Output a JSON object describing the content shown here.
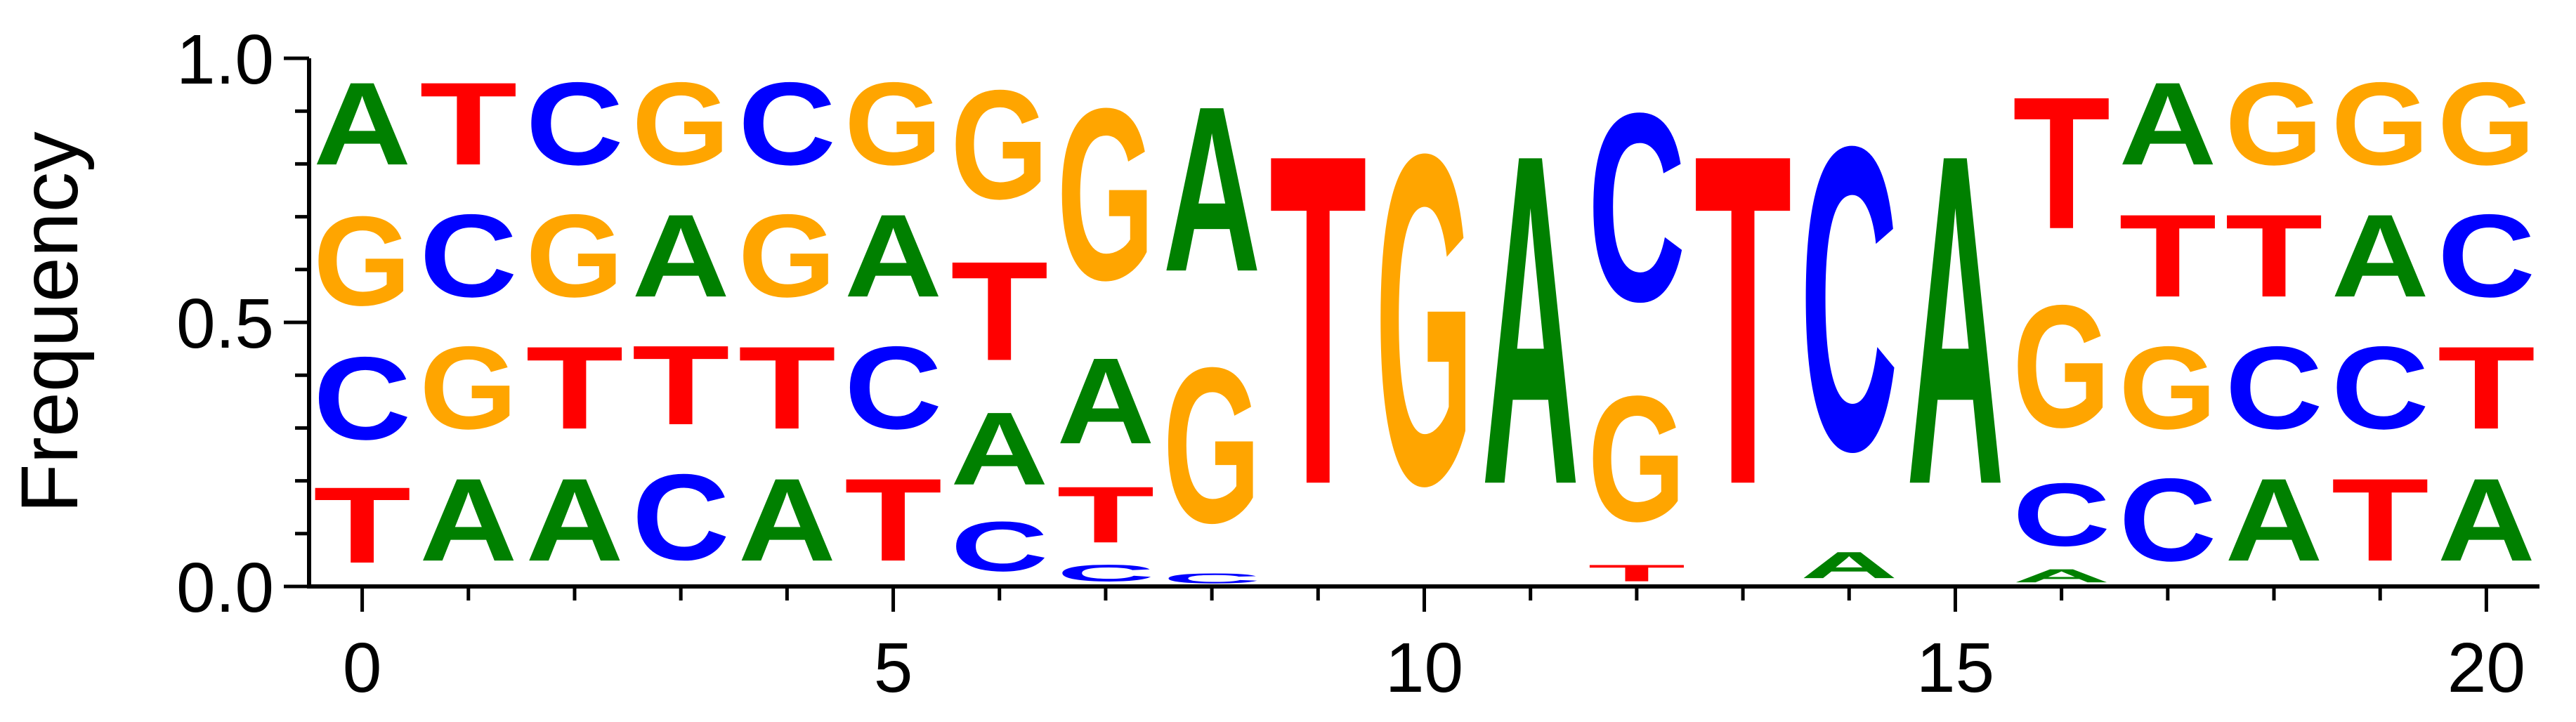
{
  "chart_data": {
    "type": "sequence-logo",
    "title": "",
    "xlabel": "",
    "ylabel": "Frequency",
    "xlim": [
      -0.5,
      20.5
    ],
    "ylim": [
      0.0,
      1.0
    ],
    "x_ticks": [
      0,
      5,
      10,
      15,
      20
    ],
    "x_tick_labels": [
      "0",
      "5",
      "10",
      "15",
      "20"
    ],
    "y_ticks": [
      0.0,
      0.5,
      1.0
    ],
    "y_tick_labels": [
      "0.0",
      "0.5",
      "1.0"
    ],
    "grid": false,
    "colors": {
      "A": "#008000",
      "C": "#0000ff",
      "G": "#ffa500",
      "T": "#ff0000"
    },
    "positions": [
      {
        "pos": 0,
        "stack": [
          [
            "T",
            0.23
          ],
          [
            "C",
            0.25
          ],
          [
            "G",
            0.27
          ],
          [
            "A",
            0.25
          ]
        ]
      },
      {
        "pos": 1,
        "stack": [
          [
            "A",
            0.25
          ],
          [
            "G",
            0.25
          ],
          [
            "C",
            0.25
          ],
          [
            "T",
            0.25
          ]
        ]
      },
      {
        "pos": 2,
        "stack": [
          [
            "A",
            0.25
          ],
          [
            "T",
            0.25
          ],
          [
            "G",
            0.25
          ],
          [
            "C",
            0.25
          ]
        ]
      },
      {
        "pos": 3,
        "stack": [
          [
            "C",
            0.26
          ],
          [
            "T",
            0.24
          ],
          [
            "A",
            0.25
          ],
          [
            "G",
            0.25
          ]
        ]
      },
      {
        "pos": 4,
        "stack": [
          [
            "A",
            0.25
          ],
          [
            "T",
            0.25
          ],
          [
            "G",
            0.25
          ],
          [
            "C",
            0.25
          ]
        ]
      },
      {
        "pos": 5,
        "stack": [
          [
            "T",
            0.25
          ],
          [
            "C",
            0.25
          ],
          [
            "A",
            0.25
          ],
          [
            "G",
            0.25
          ]
        ]
      },
      {
        "pos": 6,
        "stack": [
          [
            "C",
            0.15
          ],
          [
            "A",
            0.22
          ],
          [
            "T",
            0.3
          ],
          [
            "G",
            0.33
          ]
        ]
      },
      {
        "pos": 7,
        "stack": [
          [
            "C",
            0.05
          ],
          [
            "T",
            0.17
          ],
          [
            "A",
            0.26
          ],
          [
            "G",
            0.52
          ]
        ]
      },
      {
        "pos": 8,
        "stack": [
          [
            "C",
            0.03
          ],
          [
            "G",
            0.47
          ],
          [
            "A",
            0.5
          ]
        ]
      },
      {
        "pos": 9,
        "stack": [
          [
            "T",
            1.0
          ]
        ]
      },
      {
        "pos": 10,
        "stack": [
          [
            "G",
            1.0
          ]
        ]
      },
      {
        "pos": 11,
        "stack": [
          [
            "A",
            1.0
          ]
        ]
      },
      {
        "pos": 12,
        "stack": [
          [
            "T",
            0.05
          ],
          [
            "G",
            0.38
          ],
          [
            "C",
            0.57
          ]
        ]
      },
      {
        "pos": 13,
        "stack": [
          [
            "T",
            1.0
          ]
        ]
      },
      {
        "pos": 14,
        "stack": [
          [
            "A",
            0.08
          ],
          [
            "C",
            0.92
          ]
        ]
      },
      {
        "pos": 15,
        "stack": [
          [
            "A",
            1.0
          ]
        ]
      },
      {
        "pos": 16,
        "stack": [
          [
            "A",
            0.04
          ],
          [
            "C",
            0.19
          ],
          [
            "G",
            0.37
          ],
          [
            "T",
            0.4
          ]
        ]
      },
      {
        "pos": 17,
        "stack": [
          [
            "C",
            0.25
          ],
          [
            "G",
            0.25
          ],
          [
            "T",
            0.25
          ],
          [
            "A",
            0.25
          ]
        ]
      },
      {
        "pos": 18,
        "stack": [
          [
            "A",
            0.25
          ],
          [
            "C",
            0.25
          ],
          [
            "T",
            0.25
          ],
          [
            "G",
            0.25
          ]
        ]
      },
      {
        "pos": 19,
        "stack": [
          [
            "T",
            0.25
          ],
          [
            "C",
            0.25
          ],
          [
            "A",
            0.25
          ],
          [
            "G",
            0.25
          ]
        ]
      },
      {
        "pos": 20,
        "stack": [
          [
            "A",
            0.25
          ],
          [
            "T",
            0.25
          ],
          [
            "C",
            0.25
          ],
          [
            "G",
            0.25
          ]
        ]
      }
    ]
  }
}
